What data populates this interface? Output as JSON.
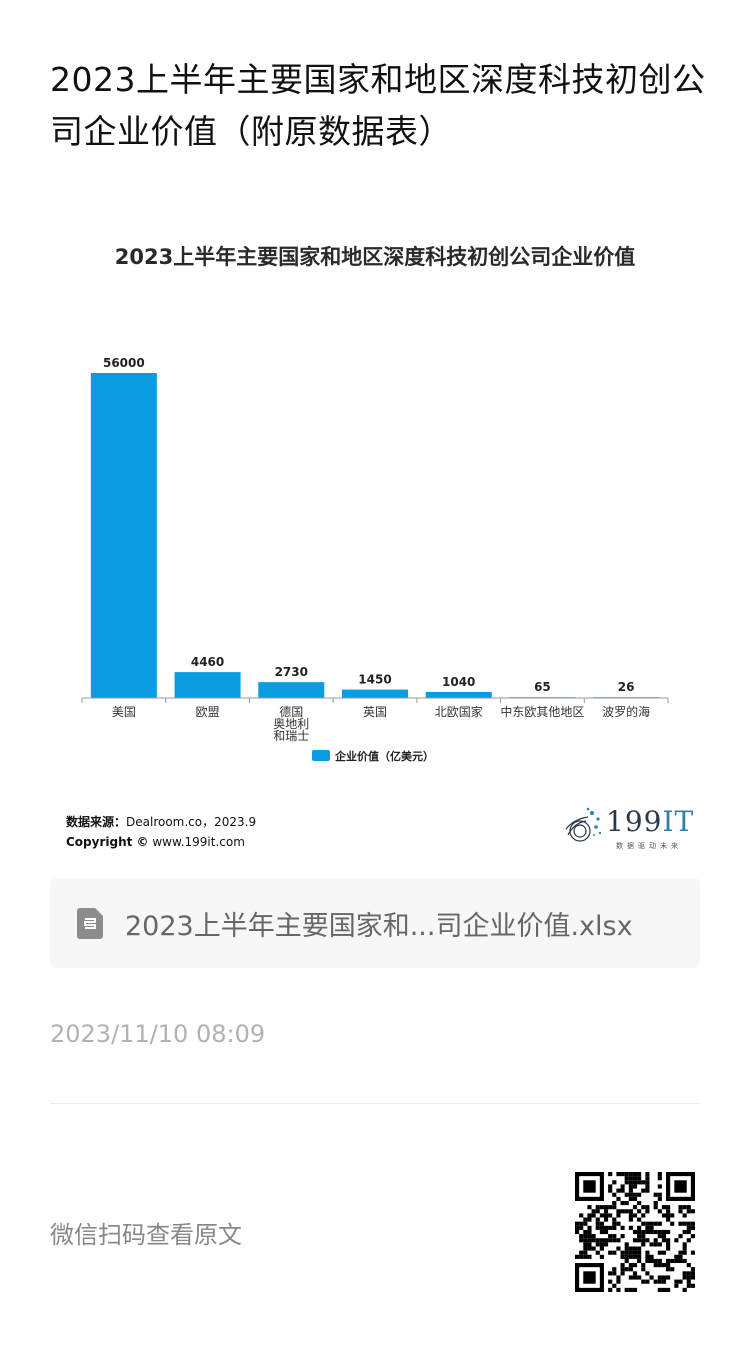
{
  "article": {
    "title": "2023上半年主要国家和地区深度科技初创公司企业价值（附原数据表）"
  },
  "chart_data": {
    "type": "bar",
    "title": "2023上半年主要国家和地区深度科技初创公司企业价值",
    "categories": [
      "美国",
      "欧盟",
      "德国\n奥地利\n和瑞士",
      "英国",
      "北欧国家",
      "中东欧其他地区",
      "波罗的海"
    ],
    "series": [
      {
        "name": "企业价值（亿美元）",
        "values": [
          56000,
          4460,
          2730,
          1450,
          1040,
          65,
          26
        ]
      }
    ],
    "data_labels": [
      "56000",
      "4460",
      "2730",
      "1450",
      "1040",
      "65",
      "26"
    ],
    "ylim": [
      0,
      56000
    ],
    "grid": false,
    "legend_position": "bottom",
    "colors": {
      "bar": "#0a9be0",
      "axis": "#999999"
    }
  },
  "source": {
    "label": "数据来源：",
    "text": "Dealroom.co，2023.9",
    "copyright_label": "Copyright ©",
    "copyright_text": " www.199it.com"
  },
  "brand": {
    "name_num": "199",
    "name_it": "IT",
    "slogan": "数据驱动未来"
  },
  "attachment": {
    "filename": "2023上半年主要国家和...司企业价值.xlsx",
    "icon": "spreadsheet-file-icon"
  },
  "meta": {
    "timestamp": "2023/11/10 08:09",
    "scan_prompt": "微信扫码查看原文"
  }
}
